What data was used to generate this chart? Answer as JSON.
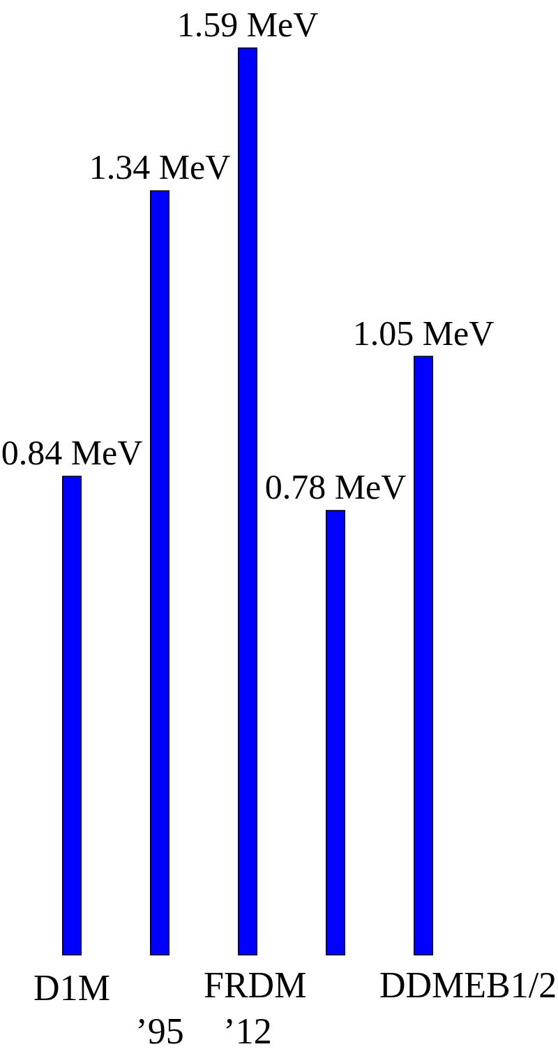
{
  "chart_data": {
    "type": "bar",
    "categories": [
      "D1M",
      "’95",
      "’12",
      null,
      null
    ],
    "values": [
      0.84,
      1.34,
      1.59,
      0.78,
      1.05
    ],
    "value_labels": [
      "0.84 MeV",
      "1.34 MeV",
      "1.59 MeV",
      "0.78 MeV",
      "1.05 MeV"
    ],
    "color": "#0000ff",
    "annotations": [
      "FRDM",
      "DDMEB1/2"
    ]
  }
}
